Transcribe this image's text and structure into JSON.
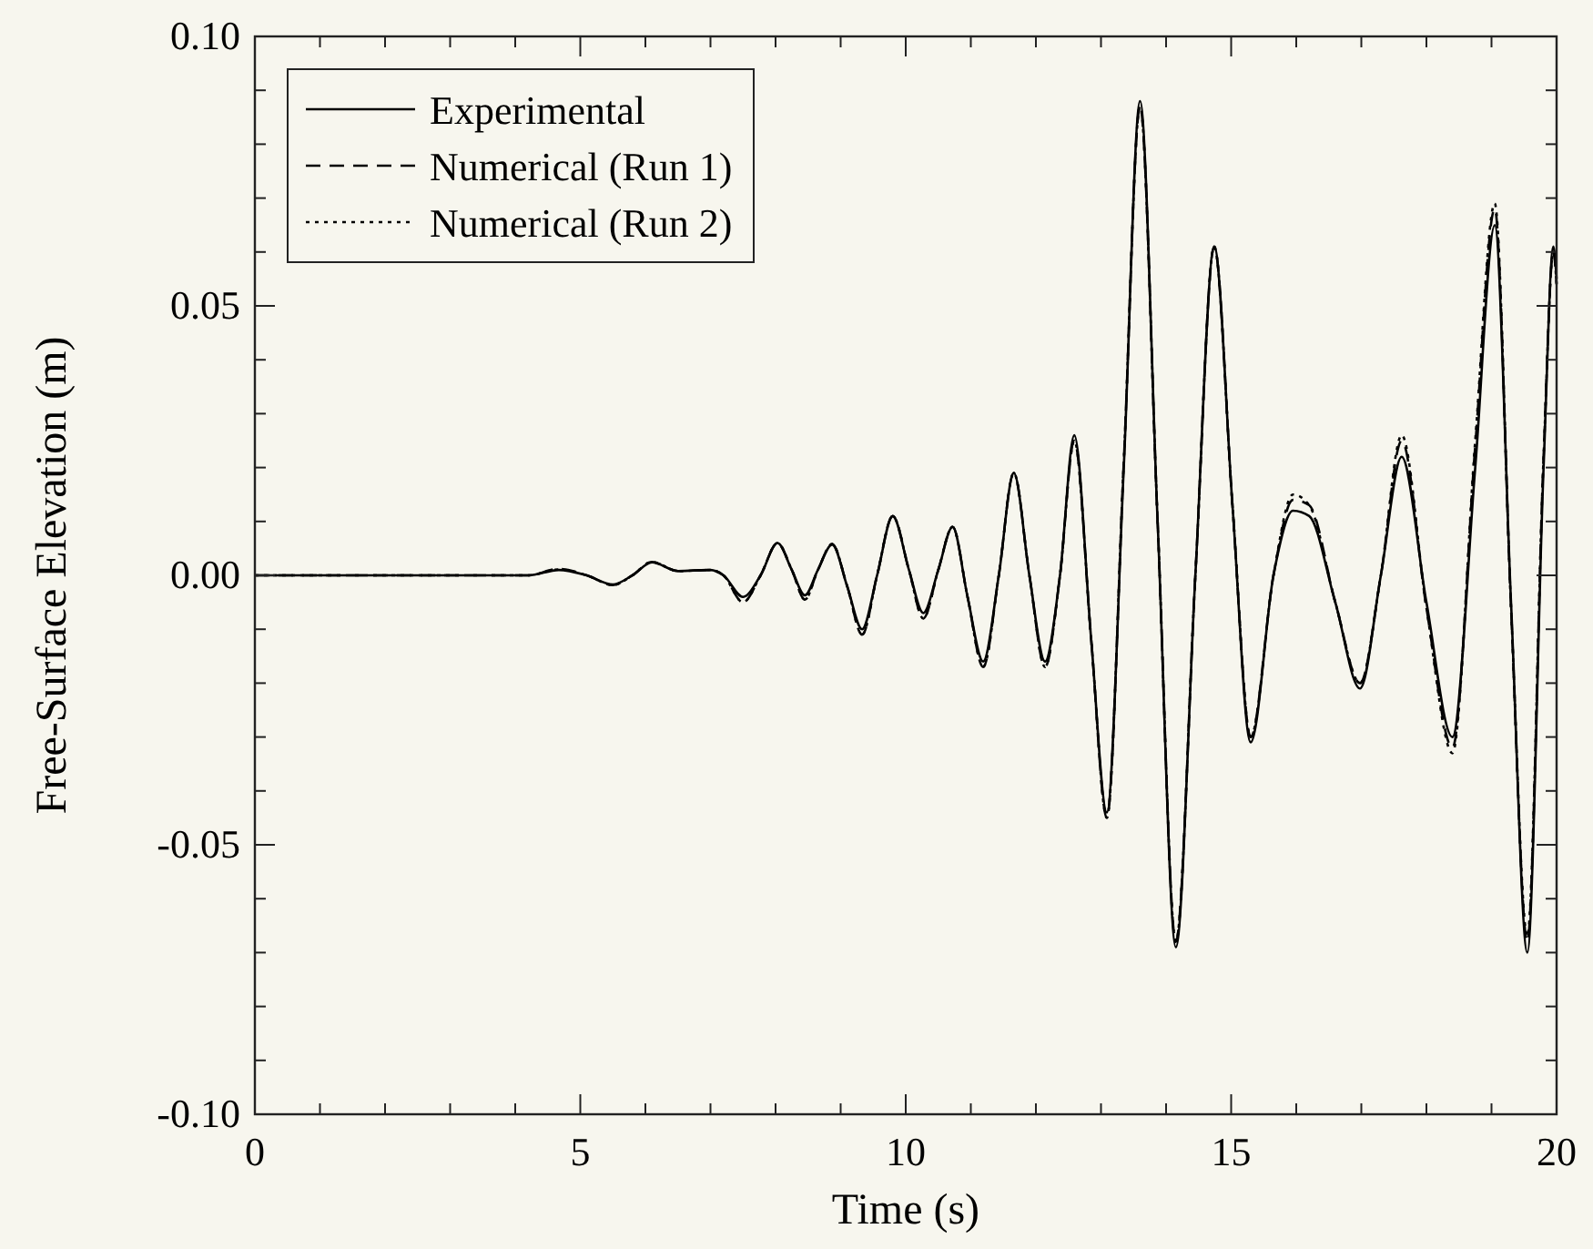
{
  "chart_data": {
    "type": "line",
    "xlabel": "Time (s)",
    "ylabel": "Free-Surface Elevation (m)",
    "legend": "top left",
    "marker": "none",
    "grid": false,
    "xlim": [
      0,
      20
    ],
    "ylim": [
      -0.1,
      0.1
    ],
    "xticks": [
      0,
      {
        "value": 1,
        "label": null
      },
      {
        "value": 2,
        "label": null
      },
      {
        "value": 3,
        "label": null
      },
      {
        "value": 4,
        "label": null
      },
      5,
      {
        "value": 6,
        "label": null
      },
      {
        "value": 7,
        "label": null
      },
      {
        "value": 8,
        "label": null
      },
      {
        "value": 9,
        "label": null
      },
      10,
      {
        "value": 11,
        "label": null
      },
      {
        "value": 12,
        "label": null
      },
      {
        "value": 13,
        "label": null
      },
      {
        "value": 14,
        "label": null
      },
      15,
      {
        "value": 16,
        "label": null
      },
      {
        "value": 17,
        "label": null
      },
      {
        "value": 18,
        "label": null
      },
      {
        "value": 19,
        "label": null
      },
      20
    ],
    "yticks": [
      {
        "value": -0.1,
        "label": "-0.10"
      },
      {
        "value": -0.09,
        "label": null
      },
      {
        "value": -0.08,
        "label": null
      },
      {
        "value": -0.07,
        "label": null
      },
      {
        "value": -0.06,
        "label": null
      },
      {
        "value": -0.05,
        "label": "-0.05"
      },
      {
        "value": -0.04,
        "label": null
      },
      {
        "value": -0.03,
        "label": null
      },
      {
        "value": -0.02,
        "label": null
      },
      {
        "value": -0.01,
        "label": null
      },
      {
        "value": 0,
        "label": "0.00"
      },
      {
        "value": 0.01,
        "label": null
      },
      {
        "value": 0.02,
        "label": null
      },
      {
        "value": 0.03,
        "label": null
      },
      {
        "value": 0.04,
        "label": null
      },
      {
        "value": 0.05,
        "label": "0.05"
      },
      {
        "value": 0.06,
        "label": null
      },
      {
        "value": 0.07,
        "label": null
      },
      {
        "value": 0.08,
        "label": null
      },
      {
        "value": 0.09,
        "label": null
      },
      {
        "value": 0.1,
        "label": "0.10"
      }
    ],
    "x": [
      0,
      4.2,
      4.67,
      5.1,
      5.5,
      5.8,
      6.1,
      6.5,
      7.0,
      7.2,
      7.5,
      7.77,
      8.03,
      8.25,
      8.45,
      8.65,
      8.87,
      9.1,
      9.33,
      9.56,
      9.8,
      10.05,
      10.27,
      10.5,
      10.72,
      10.95,
      11.19,
      11.43,
      11.66,
      11.9,
      12.14,
      12.37,
      12.59,
      12.85,
      13.09,
      13.35,
      13.6,
      13.87,
      14.15,
      14.45,
      14.74,
      15.02,
      15.3,
      15.65,
      15.95,
      16.2,
      16.6,
      16.98,
      17.3,
      17.62,
      18.0,
      18.4,
      18.75,
      19.05,
      19.3,
      19.55,
      19.8,
      19.95,
      20
    ],
    "series": [
      {
        "name": "Experimental",
        "color": "#000000",
        "line_style": "solid",
        "values": [
          0,
          0,
          0.001,
          0,
          -0.0017,
          0,
          0.0024,
          0.0008,
          0.001,
          0,
          -0.004,
          0,
          0.006,
          0.001,
          -0.0037,
          0.001,
          0.0057,
          -0.002,
          -0.01,
          0,
          0.011,
          0.001,
          -0.007,
          0.001,
          0.009,
          -0.004,
          -0.016,
          0,
          0.019,
          0,
          -0.016,
          0,
          0.026,
          -0.012,
          -0.044,
          0.02,
          0.088,
          0.01,
          -0.069,
          0,
          0.061,
          0.013,
          -0.031,
          0,
          0.012,
          0.011,
          -0.005,
          -0.021,
          0,
          0.022,
          -0.005,
          -0.03,
          0.02,
          0.065,
          -0.005,
          -0.07,
          0.02,
          0.061,
          0.055
        ]
      },
      {
        "name": "Numerical (Run 1)",
        "color": "#000000",
        "line_style": "dashed",
        "values": [
          0,
          0,
          0.0012,
          0,
          -0.0018,
          0,
          0.0025,
          0.0008,
          0.001,
          0,
          -0.005,
          0,
          0.006,
          0.001,
          -0.0045,
          0.001,
          0.0058,
          -0.002,
          -0.011,
          0,
          0.011,
          0.001,
          -0.008,
          0.001,
          0.009,
          -0.004,
          -0.017,
          0,
          0.019,
          0,
          -0.017,
          0,
          0.025,
          -0.012,
          -0.045,
          0.021,
          0.087,
          0.01,
          -0.068,
          0,
          0.061,
          0.013,
          -0.03,
          0,
          0.014,
          0.013,
          -0.005,
          -0.02,
          0,
          0.025,
          -0.006,
          -0.032,
          0.024,
          0.068,
          -0.006,
          -0.068,
          0.022,
          0.06,
          0.054
        ]
      },
      {
        "name": "Numerical (Run 2)",
        "color": "#000000",
        "line_style": "dotted",
        "values": [
          0,
          0,
          0.0011,
          0,
          -0.0018,
          0,
          0.0025,
          0.0008,
          0.001,
          0,
          -0.005,
          0,
          0.006,
          0.001,
          -0.0045,
          0.001,
          0.0058,
          -0.002,
          -0.011,
          0,
          0.011,
          0.001,
          -0.008,
          0.001,
          0.009,
          -0.004,
          -0.017,
          0,
          0.019,
          0,
          -0.017,
          0,
          0.025,
          -0.012,
          -0.045,
          0.021,
          0.087,
          0.01,
          -0.068,
          0,
          0.061,
          0.013,
          -0.03,
          0,
          0.015,
          0.013,
          -0.005,
          -0.02,
          0,
          0.026,
          -0.006,
          -0.033,
          0.025,
          0.069,
          -0.006,
          -0.067,
          0.022,
          0.06,
          0.054
        ]
      }
    ]
  }
}
